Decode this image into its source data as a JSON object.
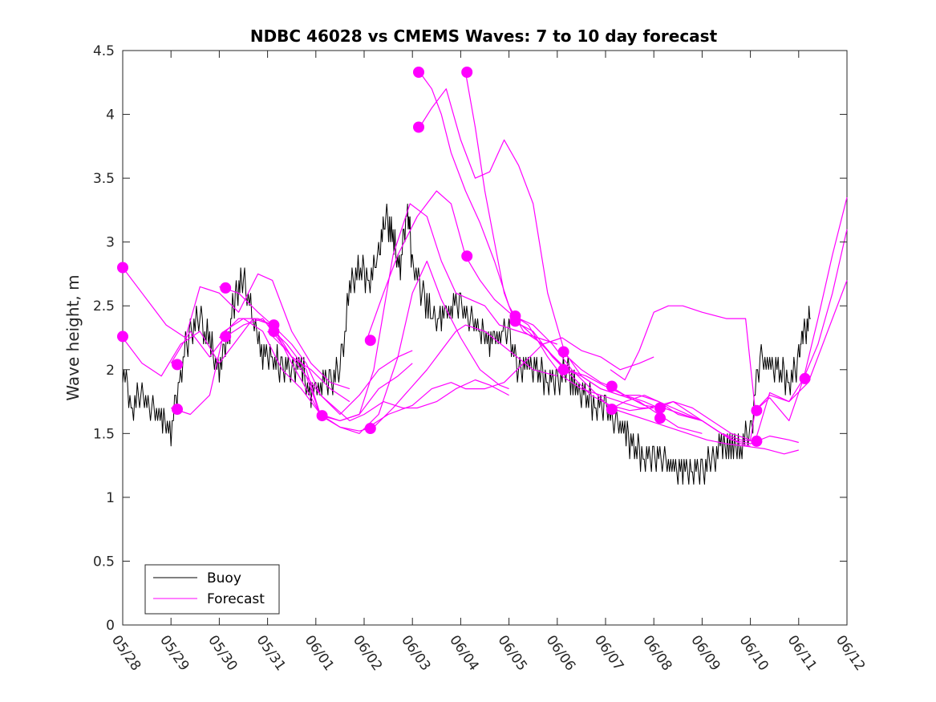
{
  "chart_data": {
    "type": "line",
    "title": "NDBC 46028 vs CMEMS Waves: 7 to 10 day forecast",
    "xlabel": "",
    "ylabel": "Wave height, m",
    "xlim": [
      0,
      15
    ],
    "ylim": [
      0,
      4.5
    ],
    "x_unit": "days since 05/28",
    "xticks": [
      0,
      1,
      2,
      3,
      4,
      5,
      6,
      7,
      8,
      9,
      10,
      11,
      12,
      13,
      14,
      15
    ],
    "xtick_labels": [
      "05/28",
      "05/29",
      "05/30",
      "05/31",
      "06/01",
      "06/02",
      "06/03",
      "06/04",
      "06/05",
      "06/06",
      "06/07",
      "06/08",
      "06/09",
      "06/10",
      "06/11",
      "06/12"
    ],
    "yticks": [
      0,
      0.5,
      1,
      1.5,
      2,
      2.5,
      3,
      3.5,
      4,
      4.5
    ],
    "ytick_labels": [
      "0",
      "0.5",
      "1",
      "1.5",
      "2",
      "2.5",
      "3",
      "3.5",
      "4",
      "4.5"
    ],
    "grid": false,
    "legend": {
      "position": "bottom-left",
      "entries": [
        "Buoy",
        "Forecast"
      ]
    },
    "colors": {
      "buoy": "#000000",
      "forecast": "#ff00ff"
    },
    "buoy": {
      "name": "Buoy",
      "x": [
        0,
        0.2,
        0.4,
        0.6,
        0.8,
        1.0,
        1.2,
        1.4,
        1.6,
        1.8,
        2.0,
        2.2,
        2.35,
        2.5,
        2.7,
        2.9,
        3.1,
        3.3,
        3.5,
        3.7,
        3.9,
        4.1,
        4.3,
        4.5,
        4.7,
        4.9,
        5.1,
        5.3,
        5.45,
        5.6,
        5.75,
        5.9,
        6.0,
        6.2,
        6.4,
        6.6,
        6.8,
        7.0,
        7.2,
        7.4,
        7.6,
        7.8,
        8.0,
        8.2,
        8.4,
        8.6,
        8.8,
        9.0,
        9.2,
        9.4,
        9.6,
        9.8,
        10.0,
        10.2,
        10.4,
        10.6,
        10.8,
        11.0,
        11.2,
        11.4,
        11.6,
        11.8,
        12.0,
        12.2,
        12.4,
        12.6,
        12.8,
        13.0,
        13.2,
        13.4,
        13.6,
        13.8,
        14.0,
        14.1,
        14.25
      ],
      "y": [
        2.0,
        1.7,
        1.8,
        1.7,
        1.6,
        1.5,
        2.0,
        2.3,
        2.4,
        2.2,
        2.0,
        2.3,
        2.6,
        2.7,
        2.4,
        2.1,
        2.1,
        2.0,
        2.0,
        2.0,
        1.8,
        1.9,
        1.9,
        2.0,
        2.6,
        2.8,
        2.7,
        2.9,
        3.2,
        3.0,
        2.8,
        3.3,
        2.8,
        2.6,
        2.4,
        2.4,
        2.5,
        2.5,
        2.4,
        2.3,
        2.2,
        2.3,
        2.3,
        2.0,
        2.0,
        2.0,
        1.9,
        1.9,
        2.0,
        1.8,
        1.8,
        1.7,
        1.7,
        1.6,
        1.5,
        1.4,
        1.3,
        1.3,
        1.3,
        1.2,
        1.2,
        1.2,
        1.2,
        1.3,
        1.4,
        1.4,
        1.4,
        1.5,
        2.1,
        2.0,
        2.0,
        1.9,
        2.1,
        2.3,
        2.4
      ]
    },
    "forecast": [
      {
        "name": "Forecast",
        "x": [
          0,
          0.4,
          0.9,
          1.3,
          1.6,
          2.0,
          2.4,
          2.8,
          3.1,
          3.5,
          3.9,
          4.3,
          4.7
        ],
        "y": [
          2.8,
          2.6,
          2.35,
          2.25,
          2.65,
          2.6,
          2.45,
          2.75,
          2.7,
          2.3,
          2.05,
          1.9,
          1.85
        ]
      },
      {
        "name": "",
        "x": [
          0,
          0.4,
          0.8,
          1.2,
          1.6,
          2.0,
          2.3,
          2.7,
          3.1,
          3.5,
          3.9,
          4.3,
          4.7
        ],
        "y": [
          2.25,
          2.05,
          1.95,
          2.2,
          2.3,
          2.05,
          2.2,
          2.4,
          2.35,
          2.1,
          2.0,
          1.85,
          1.75
        ]
      },
      {
        "name": "",
        "x": [
          1.0,
          1.4,
          1.8,
          2.1,
          2.5,
          2.9,
          3.3,
          3.7,
          4.1,
          4.5,
          4.9,
          5.3,
          5.7,
          6.0
        ],
        "y": [
          2.05,
          2.3,
          2.1,
          2.25,
          2.35,
          2.4,
          2.2,
          2.0,
          1.8,
          1.65,
          1.8,
          2.0,
          2.1,
          2.15
        ]
      },
      {
        "name": "",
        "x": [
          1.0,
          1.4,
          1.8,
          2.1,
          2.5,
          2.9,
          3.3,
          3.7,
          4.1,
          4.5,
          4.9,
          5.3,
          5.7,
          6.0
        ],
        "y": [
          1.7,
          1.65,
          1.8,
          2.3,
          2.4,
          2.3,
          2.0,
          1.85,
          1.65,
          1.6,
          1.65,
          1.85,
          1.95,
          2.05
        ]
      },
      {
        "name": "",
        "x": [
          2.0,
          2.4,
          2.8,
          3.1,
          3.5,
          3.8,
          4.1,
          4.4,
          4.7,
          5.0,
          5.4,
          5.8,
          6.1,
          6.5,
          6.9,
          7.3,
          7.6,
          8.0
        ],
        "y": [
          2.65,
          2.6,
          2.45,
          2.35,
          2.2,
          2.05,
          1.8,
          1.7,
          1.6,
          1.65,
          1.75,
          1.7,
          1.7,
          1.75,
          1.85,
          1.92,
          1.88,
          1.8
        ]
      },
      {
        "name": "",
        "x": [
          2.0,
          2.4,
          2.8,
          3.1,
          3.5,
          3.8,
          4.1,
          4.5,
          4.9,
          5.3,
          5.7,
          6.0,
          6.3,
          6.6,
          7.0,
          7.4,
          7.8,
          8.0
        ],
        "y": [
          2.25,
          2.4,
          2.4,
          2.35,
          2.05,
          1.85,
          1.65,
          1.55,
          1.5,
          1.65,
          2.1,
          2.6,
          2.85,
          2.55,
          2.25,
          2.0,
          1.88,
          1.85
        ]
      },
      {
        "name": "",
        "x": [
          3.0,
          3.4,
          3.8,
          4.1,
          4.5,
          4.9,
          5.2,
          5.6,
          5.95,
          6.3,
          6.6,
          6.9,
          7.2,
          7.5,
          7.8,
          8.2,
          8.6,
          9.0
        ],
        "y": [
          2.35,
          2.2,
          2.0,
          1.64,
          1.6,
          1.65,
          2.0,
          2.9,
          3.3,
          3.2,
          2.85,
          2.6,
          2.55,
          2.5,
          2.35,
          2.3,
          2.25,
          2.2
        ]
      },
      {
        "name": "",
        "x": [
          3.0,
          3.4,
          3.8,
          4.1,
          4.5,
          4.9,
          5.2,
          5.6,
          5.95,
          6.3,
          6.6,
          6.9,
          7.1,
          7.5,
          8.0,
          8.5,
          9.0
        ],
        "y": [
          2.3,
          2.15,
          1.95,
          1.64,
          1.55,
          1.52,
          1.55,
          1.7,
          1.85,
          2.0,
          2.15,
          2.3,
          2.35,
          2.3,
          2.15,
          2.0,
          1.95
        ]
      },
      {
        "name": "",
        "x": [
          5.05,
          5.5,
          6.0,
          6.4,
          6.8,
          7.1,
          7.5,
          7.9,
          8.3,
          8.7,
          9.1,
          9.5,
          9.9,
          10.3,
          10.7,
          11.0
        ],
        "y": [
          1.54,
          1.65,
          1.72,
          1.85,
          1.9,
          1.85,
          1.85,
          1.9,
          2.05,
          2.2,
          2.25,
          2.15,
          2.1,
          2.0,
          2.05,
          2.1
        ]
      },
      {
        "name": "",
        "x": [
          5.05,
          5.4,
          5.7,
          6.1,
          6.5,
          6.8,
          7.1,
          7.4,
          7.7,
          8.0,
          8.4,
          8.8,
          9.1,
          9.5,
          9.9,
          10.3,
          10.7,
          11.0
        ],
        "y": [
          2.23,
          2.6,
          2.9,
          3.2,
          3.4,
          3.3,
          2.89,
          2.7,
          2.55,
          2.45,
          2.35,
          2.1,
          1.95,
          1.85,
          1.8,
          1.75,
          1.7,
          1.7
        ]
      },
      {
        "name": "",
        "x": [
          6.15,
          6.4,
          6.7,
          7.0,
          7.3,
          7.6,
          7.9,
          8.2,
          8.5,
          8.8,
          9.15,
          9.5,
          9.9,
          10.3,
          10.7,
          11.1,
          11.5,
          12.0
        ],
        "y": [
          3.9,
          4.05,
          4.2,
          3.8,
          3.5,
          3.55,
          3.8,
          3.6,
          3.3,
          2.6,
          2.14,
          1.95,
          1.85,
          1.8,
          1.8,
          1.75,
          1.65,
          1.6
        ]
      },
      {
        "name": "",
        "x": [
          6.15,
          6.4,
          6.6,
          6.8,
          7.1,
          7.4,
          7.7,
          8.0,
          8.3,
          8.7,
          9.15,
          9.5,
          9.9,
          10.3,
          10.7,
          11.1,
          11.5,
          12.0
        ],
        "y": [
          4.33,
          4.2,
          4.0,
          3.7,
          3.4,
          3.15,
          2.85,
          2.5,
          2.3,
          2.2,
          2.0,
          1.95,
          1.85,
          1.8,
          1.75,
          1.65,
          1.55,
          1.5
        ]
      },
      {
        "name": "",
        "x": [
          7.1,
          7.3,
          7.5,
          7.7,
          7.9,
          8.1,
          8.4,
          8.8,
          9.2,
          9.6,
          10.0,
          10.4,
          10.8,
          11.2,
          11.6,
          12.0,
          12.4,
          12.8,
          13.0
        ],
        "y": [
          4.33,
          3.9,
          3.4,
          3.0,
          2.6,
          2.4,
          2.3,
          2.15,
          2.0,
          1.95,
          1.87,
          1.8,
          1.72,
          1.7,
          1.65,
          1.6,
          1.5,
          1.42,
          1.4
        ]
      },
      {
        "name": "",
        "x": [
          8.1,
          8.5,
          8.9,
          9.3,
          9.7,
          10.1,
          10.5,
          10.9,
          11.3,
          11.7,
          12.1,
          12.5,
          12.9,
          13.3,
          13.7,
          14.0
        ],
        "y": [
          2.42,
          2.35,
          2.2,
          2.0,
          1.85,
          1.7,
          1.65,
          1.6,
          1.55,
          1.5,
          1.45,
          1.42,
          1.4,
          1.38,
          1.34,
          1.37
        ]
      },
      {
        "name": "",
        "x": [
          8.1,
          8.5,
          8.9,
          9.3,
          9.7,
          10.1,
          10.5,
          10.9,
          11.1,
          11.4,
          11.8,
          12.2,
          12.6,
          13.0,
          13.4,
          13.8,
          14.0
        ],
        "y": [
          2.38,
          2.3,
          2.1,
          1.95,
          1.8,
          1.72,
          1.68,
          1.7,
          1.72,
          1.75,
          1.65,
          1.55,
          1.45,
          1.42,
          1.48,
          1.45,
          1.43
        ]
      },
      {
        "name": "",
        "x": [
          9.1,
          9.5,
          9.9,
          10.1,
          10.4,
          10.8,
          11.1,
          11.4,
          11.8,
          12.2,
          12.6,
          13.0,
          13.1,
          13.4,
          13.8,
          14.2,
          14.6,
          15.0
        ],
        "y": [
          2.14,
          2.0,
          1.9,
          1.87,
          1.8,
          1.75,
          1.7,
          1.75,
          1.7,
          1.6,
          1.5,
          1.45,
          1.68,
          1.8,
          1.75,
          1.9,
          2.3,
          2.7
        ]
      },
      {
        "name": "",
        "x": [
          10.1,
          10.4,
          10.8,
          11.1,
          11.4,
          11.7,
          12.0,
          12.4,
          12.8,
          13.1,
          13.4,
          13.8,
          14.1,
          14.4,
          14.7,
          15.0
        ],
        "y": [
          1.69,
          1.75,
          1.8,
          1.75,
          1.7,
          1.65,
          1.6,
          1.5,
          1.45,
          1.44,
          1.82,
          1.75,
          1.93,
          2.2,
          2.6,
          3.1
        ]
      },
      {
        "name": "",
        "x": [
          10.1,
          10.4,
          10.7,
          11.0,
          11.3,
          11.6,
          12.0,
          12.5,
          12.9,
          13.1,
          13.4,
          13.8,
          14.1,
          14.4,
          14.7,
          15.0
        ],
        "y": [
          2.0,
          1.92,
          2.15,
          2.45,
          2.5,
          2.5,
          2.45,
          2.4,
          2.4,
          1.68,
          1.78,
          1.6,
          1.93,
          2.4,
          2.9,
          3.35
        ]
      }
    ],
    "markers": [
      {
        "x": 0.0,
        "y": 2.8
      },
      {
        "x": 0.0,
        "y": 2.26
      },
      {
        "x": 1.13,
        "y": 2.04
      },
      {
        "x": 1.13,
        "y": 1.69
      },
      {
        "x": 2.13,
        "y": 2.64
      },
      {
        "x": 2.13,
        "y": 2.26
      },
      {
        "x": 3.13,
        "y": 2.35
      },
      {
        "x": 3.13,
        "y": 2.3
      },
      {
        "x": 4.13,
        "y": 1.64
      },
      {
        "x": 5.13,
        "y": 2.23
      },
      {
        "x": 5.13,
        "y": 1.54
      },
      {
        "x": 6.13,
        "y": 4.33
      },
      {
        "x": 6.13,
        "y": 3.9
      },
      {
        "x": 7.13,
        "y": 4.33
      },
      {
        "x": 7.13,
        "y": 2.89
      },
      {
        "x": 8.13,
        "y": 2.42
      },
      {
        "x": 8.13,
        "y": 2.38
      },
      {
        "x": 9.13,
        "y": 2.14
      },
      {
        "x": 9.13,
        "y": 2.0
      },
      {
        "x": 10.13,
        "y": 1.87
      },
      {
        "x": 10.13,
        "y": 1.69
      },
      {
        "x": 11.13,
        "y": 1.7
      },
      {
        "x": 11.13,
        "y": 1.62
      },
      {
        "x": 13.13,
        "y": 1.68
      },
      {
        "x": 13.13,
        "y": 1.44
      },
      {
        "x": 14.13,
        "y": 1.93
      }
    ]
  }
}
